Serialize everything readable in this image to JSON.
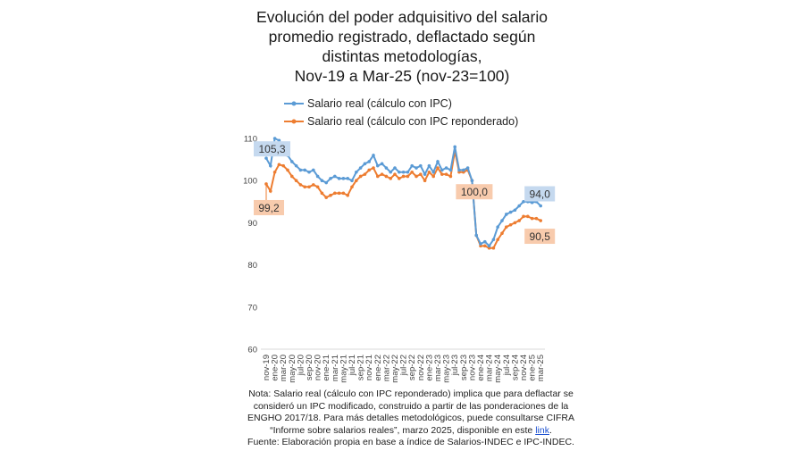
{
  "chart_data": {
    "type": "line",
    "title": [
      "Evolución del poder adquisitivo del salario",
      "promedio registrado, deflactado según",
      "distintas metodologías,",
      "Nov-19 a Mar-25 (nov-23=100)"
    ],
    "ylim": [
      60,
      110
    ],
    "yticks": [
      60,
      70,
      80,
      90,
      100,
      110
    ],
    "grid": false,
    "legend_position": "top",
    "x_tick_labels": [
      "nov-19",
      "ene-20",
      "mar-20",
      "may-20",
      "jul-20",
      "sep-20",
      "nov-20",
      "ene-21",
      "mar-21",
      "may-21",
      "jul-21",
      "sep-21",
      "nov-21",
      "ene-22",
      "mar-22",
      "may-22",
      "jul-22",
      "sep-22",
      "nov-22",
      "ene-23",
      "mar-23",
      "may-23",
      "jul-23",
      "sep-23",
      "nov-23",
      "ene-24",
      "mar-24",
      "may-24",
      "jul-24",
      "sep-24",
      "nov-24",
      "ene-25",
      "mar-25"
    ],
    "series": [
      {
        "name": "Salario real (cálculo con IPC)",
        "color": "#5b9bd5",
        "values": [
          105.3,
          103.5,
          110,
          109.5,
          108,
          106,
          104.5,
          103.5,
          102.5,
          102.5,
          102,
          102.5,
          101,
          100,
          99.5,
          100.5,
          101,
          100.5,
          100.5,
          100.5,
          100,
          102,
          103,
          104,
          104.5,
          106,
          103.5,
          104,
          103,
          102,
          103,
          102,
          102,
          102,
          103.5,
          103,
          103.5,
          101.5,
          103.5,
          102,
          104.5,
          102.5,
          103,
          102.5,
          108,
          102.5,
          102.5,
          103,
          100,
          87,
          85,
          85.5,
          84.5,
          86,
          89,
          90.5,
          92,
          92.5,
          93,
          94,
          95,
          95,
          94.8,
          95,
          94.0
        ],
        "labels": [
          {
            "index": 0,
            "text": "105,3"
          },
          {
            "index": 64,
            "text": "94,0"
          }
        ]
      },
      {
        "name": "Salario real (cálculo con IPC reponderado)",
        "color": "#ed7d31",
        "values": [
          99.2,
          97.5,
          102,
          103.8,
          103.5,
          102.5,
          101,
          100,
          99,
          98.5,
          98.5,
          99,
          98.5,
          97,
          96,
          96.5,
          97,
          97,
          97,
          96.5,
          98.5,
          100,
          101,
          101.5,
          102.5,
          103,
          101,
          101.5,
          101,
          100.5,
          101.5,
          100.5,
          101,
          101,
          102,
          101,
          101.5,
          100,
          102,
          101,
          103,
          101.5,
          101.5,
          101,
          107,
          102,
          102,
          102.5,
          100,
          87,
          84.5,
          84.5,
          84,
          84,
          86,
          87.5,
          89,
          89.5,
          90,
          90.5,
          91.5,
          91.5,
          91,
          91,
          90.5
        ],
        "labels": [
          {
            "index": 0,
            "text": "99,2"
          },
          {
            "index": 48,
            "text": "100,0"
          },
          {
            "index": 64,
            "text": "90,5"
          }
        ]
      }
    ]
  },
  "note": {
    "line1": "Nota: Salario real (cálculo con IPC reponderado) implica que para deflactar se",
    "line2": "consideró un IPC modificado, construido a partir de las ponderaciones de  la",
    "line3": "ENGHO 2017/18. Para más detalles metodológicos, puede consultarse CIFRA",
    "line4": "“Informe sobre salarios reales”, marzo 2025, disponible en este",
    "link": "link",
    "line4_end": ".",
    "source": "Fuente: Elaboración propia en base a índice de Salarios-INDEC e IPC-INDEC."
  }
}
